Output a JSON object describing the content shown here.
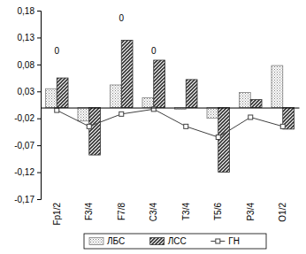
{
  "chart_data": {
    "type": "bar",
    "categories": [
      "Fp1/2",
      "F3/4",
      "F7/8",
      "C3/4",
      "T3/4",
      "T5/6",
      "P3/4",
      "O1/2"
    ],
    "series": [
      {
        "name": "ЛБС",
        "type": "bar",
        "color": "#808080",
        "values": [
          0.035,
          -0.025,
          0.042,
          0.018,
          -0.003,
          -0.02,
          0.028,
          0.078
        ]
      },
      {
        "name": "ЛСС",
        "type": "bar",
        "color": "#303030",
        "values": [
          0.055,
          -0.088,
          0.125,
          0.088,
          0.052,
          -0.12,
          0.015,
          -0.04
        ]
      },
      {
        "name": "ГН",
        "type": "line",
        "color": "#404040",
        "marker": "square",
        "values": [
          -0.005,
          -0.035,
          -0.012,
          -0.003,
          -0.035,
          -0.055,
          -0.018,
          -0.035
        ]
      }
    ],
    "annotations": [
      {
        "text": "0",
        "category": "Fp1/2",
        "y": 0.1
      },
      {
        "text": "0",
        "category": "F7/8",
        "y": 0.16
      },
      {
        "text": "0",
        "category": "C3/4",
        "y": 0.1
      }
    ],
    "ylim": [
      -0.17,
      0.18
    ],
    "yticks": [
      {
        "value": -0.17,
        "label": "-0,17"
      },
      {
        "value": -0.12,
        "label": "-0,12"
      },
      {
        "value": -0.07,
        "label": "-0,07"
      },
      {
        "value": -0.02,
        "label": "-0,02"
      },
      {
        "value": 0.03,
        "label": "0,03"
      },
      {
        "value": 0.08,
        "label": "0,08"
      },
      {
        "value": 0.13,
        "label": "0,13"
      },
      {
        "value": 0.18,
        "label": "0,18"
      }
    ],
    "grid": false,
    "legend": "bottom"
  }
}
